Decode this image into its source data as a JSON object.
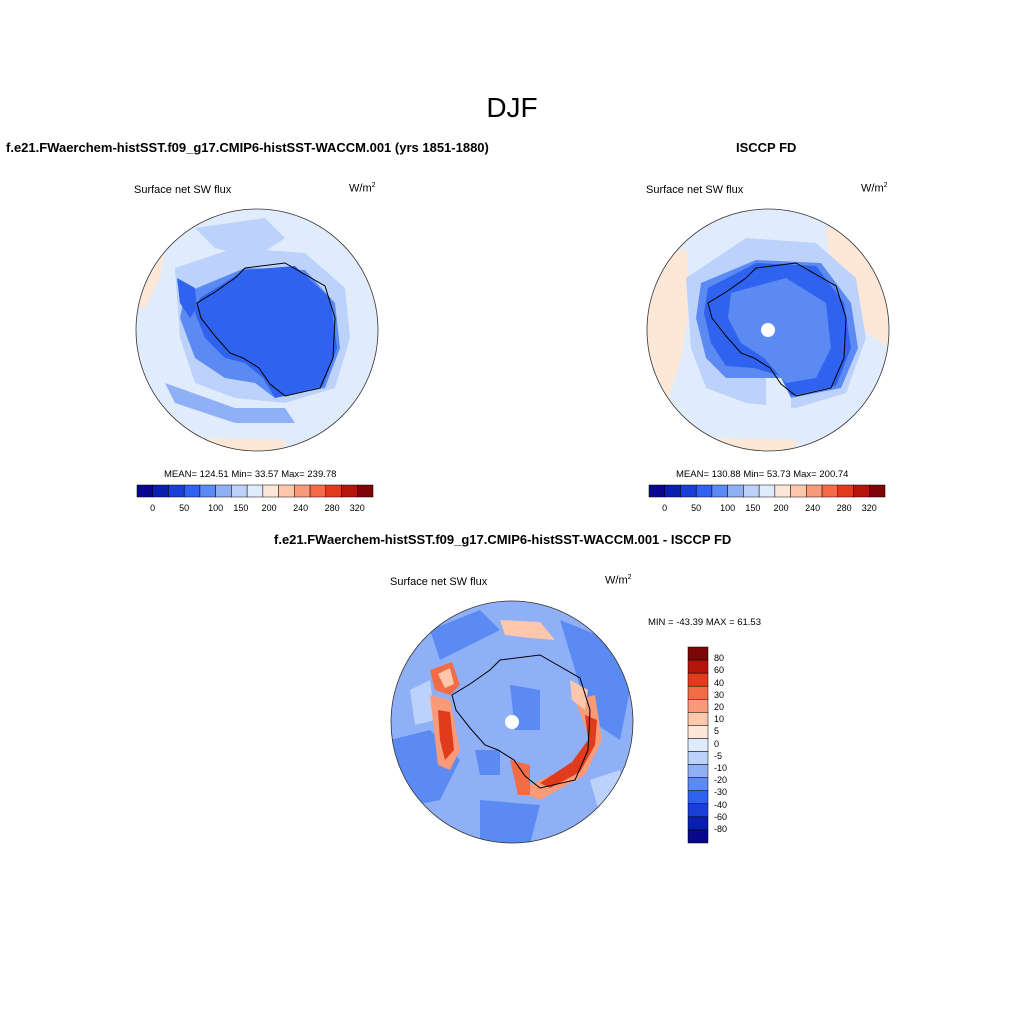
{
  "suptitle": "DJF",
  "panels": [
    {
      "title": "f.e21.FWaerchem-histSST.f09_g17.CMIP6-histSST-WACCM.001 (yrs 1851-1880)",
      "variable": "Surface net SW flux",
      "units_base": "W/m",
      "units_exp": "2",
      "stats": "MEAN= 124.51  Min=  33.57  Max= 239.78",
      "colorbar_labels": [
        "0",
        "50",
        "100",
        "150",
        "200",
        "240",
        "280",
        "320"
      ]
    },
    {
      "title": "ISCCP FD",
      "variable": "Surface net SW flux",
      "units_base": "W/m",
      "units_exp": "2",
      "stats": "MEAN= 130.88  Min=  53.73  Max= 200.74",
      "colorbar_labels": [
        "0",
        "50",
        "100",
        "150",
        "200",
        "240",
        "280",
        "320"
      ]
    },
    {
      "title": "f.e21.FWaerchem-histSST.f09_g17.CMIP6-histSST-WACCM.001 - ISCCP FD",
      "variable": "Surface net SW flux",
      "units_base": "W/m",
      "units_exp": "2",
      "stats": "MIN = -43.39 MAX =  61.53",
      "colorbar_labels": [
        "80",
        "60",
        "40",
        "30",
        "20",
        "10",
        "5",
        "0",
        "-5",
        "-10",
        "-20",
        "-30",
        "-40",
        "-60",
        "-80"
      ]
    }
  ],
  "colors": {
    "abs_colormap": [
      "#08088c",
      "#0a1fb0",
      "#1a3fd8",
      "#2f62ee",
      "#5b8af2",
      "#8fb0f6",
      "#bcd2fa",
      "#e0ecfc",
      "#fde8d8",
      "#fcc7ad",
      "#f99a78",
      "#f36c46",
      "#e03b1c",
      "#b4170a",
      "#7d0606"
    ],
    "diff_colormap": [
      "#7d0606",
      "#b4170a",
      "#e03b1c",
      "#f36c46",
      "#f99a78",
      "#fcc7ad",
      "#fde8d8",
      "#e0ecfc",
      "#bcd2fa",
      "#8fb0f6",
      "#5b8af2",
      "#2f62ee",
      "#1a3fd8",
      "#0a1fb0",
      "#08088c"
    ]
  }
}
